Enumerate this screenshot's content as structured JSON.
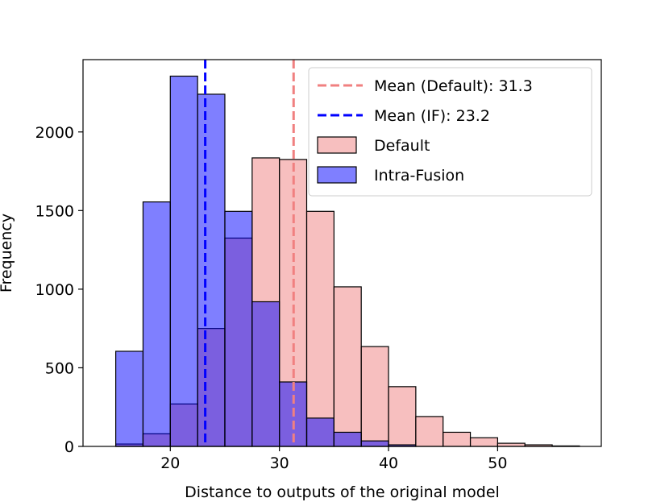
{
  "chart_data": {
    "type": "histogram",
    "xlabel": "Distance to outputs of the original model",
    "ylabel": "Frequency",
    "xlim": [
      12.0,
      59.5
    ],
    "ylim": [
      0,
      2460
    ],
    "xticks": [
      20,
      30,
      40,
      50
    ],
    "yticks": [
      0,
      500,
      1000,
      1500,
      2000
    ],
    "legend_position": "upper right",
    "series": [
      {
        "name": "Default",
        "color": "#f08080",
        "opacity": 0.5,
        "bins": [
          {
            "x0": 15.0,
            "x1": 17.5,
            "value": 15
          },
          {
            "x0": 17.5,
            "x1": 20.0,
            "value": 80
          },
          {
            "x0": 20.0,
            "x1": 22.5,
            "value": 270
          },
          {
            "x0": 22.5,
            "x1": 25.0,
            "value": 750
          },
          {
            "x0": 25.0,
            "x1": 27.5,
            "value": 1325
          },
          {
            "x0": 27.5,
            "x1": 30.0,
            "value": 1835
          },
          {
            "x0": 30.0,
            "x1": 32.5,
            "value": 1825
          },
          {
            "x0": 32.5,
            "x1": 35.0,
            "value": 1495
          },
          {
            "x0": 35.0,
            "x1": 37.5,
            "value": 1015
          },
          {
            "x0": 37.5,
            "x1": 40.0,
            "value": 635
          },
          {
            "x0": 40.0,
            "x1": 42.5,
            "value": 380
          },
          {
            "x0": 42.5,
            "x1": 45.0,
            "value": 190
          },
          {
            "x0": 45.0,
            "x1": 47.5,
            "value": 90
          },
          {
            "x0": 47.5,
            "x1": 50.0,
            "value": 55
          },
          {
            "x0": 50.0,
            "x1": 52.5,
            "value": 20
          },
          {
            "x0": 52.5,
            "x1": 55.0,
            "value": 10
          },
          {
            "x0": 55.0,
            "x1": 57.5,
            "value": 3
          }
        ]
      },
      {
        "name": "Intra-Fusion",
        "color": "#0000ff",
        "opacity": 0.5,
        "bins": [
          {
            "x0": 15.0,
            "x1": 17.5,
            "value": 605
          },
          {
            "x0": 17.5,
            "x1": 20.0,
            "value": 1555
          },
          {
            "x0": 20.0,
            "x1": 22.5,
            "value": 2355
          },
          {
            "x0": 22.5,
            "x1": 25.0,
            "value": 2240
          },
          {
            "x0": 25.0,
            "x1": 27.5,
            "value": 1495
          },
          {
            "x0": 27.5,
            "x1": 30.0,
            "value": 920
          },
          {
            "x0": 30.0,
            "x1": 32.5,
            "value": 410
          },
          {
            "x0": 32.5,
            "x1": 35.0,
            "value": 180
          },
          {
            "x0": 35.0,
            "x1": 37.5,
            "value": 90
          },
          {
            "x0": 37.5,
            "x1": 40.0,
            "value": 35
          },
          {
            "x0": 40.0,
            "x1": 42.5,
            "value": 10
          }
        ]
      }
    ],
    "mean_lines": [
      {
        "name": "Mean (Default): 31.3",
        "value": 31.3,
        "color": "#f08080"
      },
      {
        "name": "Mean (IF): 23.2",
        "value": 23.2,
        "color": "#0000ff"
      }
    ]
  }
}
